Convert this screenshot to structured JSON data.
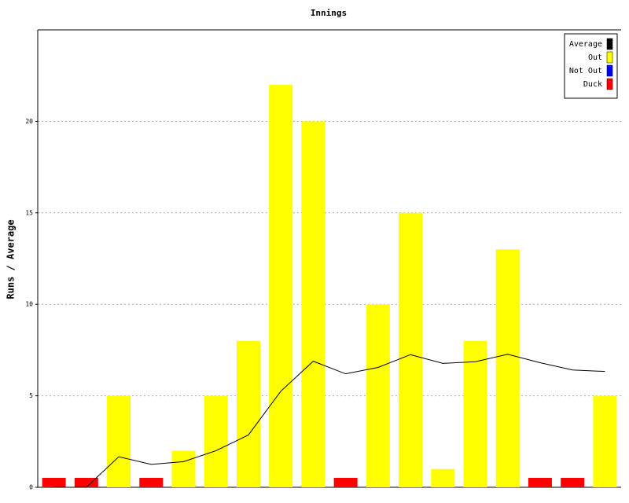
{
  "chart_data": {
    "type": "bar",
    "title": "Innings",
    "y_label": "Runs / Average",
    "ylim": [
      0,
      25
    ],
    "yticks": [
      0,
      5,
      10,
      15,
      20
    ],
    "grid": true,
    "series": [
      {
        "name": "Average",
        "color": "#000000",
        "kind": "line",
        "values": [
          0,
          0,
          1.67,
          1.25,
          1.4,
          2,
          2.86,
          5.25,
          6.89,
          6.2,
          6.55,
          7.25,
          6.77,
          6.86,
          7.27,
          6.81,
          6.41,
          6.33
        ]
      },
      {
        "name": "Out",
        "color": "#ffff00",
        "kind": "bar",
        "values": [
          null,
          null,
          5,
          null,
          2,
          5,
          8,
          22,
          20,
          null,
          10,
          15,
          1,
          8,
          13,
          null,
          null,
          5
        ]
      },
      {
        "name": "Not Out",
        "color": "#0000ff",
        "kind": "bar",
        "values": [
          null,
          null,
          null,
          null,
          null,
          null,
          null,
          null,
          null,
          null,
          null,
          null,
          null,
          null,
          null,
          null,
          null,
          null
        ]
      },
      {
        "name": "Duck",
        "color": "#ff0000",
        "kind": "duck",
        "values": [
          0,
          0,
          null,
          0,
          null,
          null,
          null,
          null,
          null,
          0,
          null,
          null,
          null,
          null,
          null,
          0,
          0,
          null
        ]
      }
    ]
  }
}
